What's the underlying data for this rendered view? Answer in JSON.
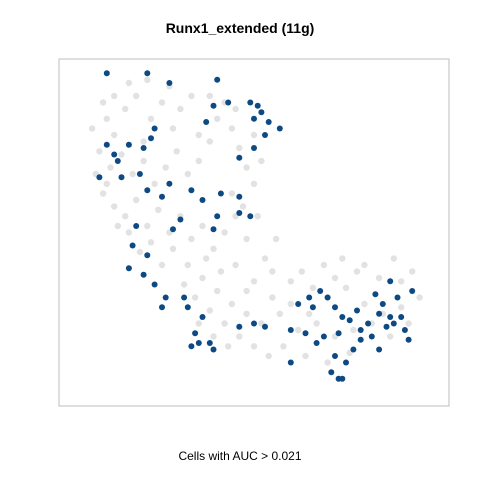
{
  "chart_data": {
    "type": "scatter",
    "title": "Runx1_extended (11g)",
    "xlabel": "Cells with AUC > 0.021",
    "ylabel": "",
    "axes_visible": false,
    "colors": {
      "highlight": "#0d4a84",
      "background": "#e2e2e2",
      "frame": "#bdbdbd"
    },
    "xlim": [
      0,
      100
    ],
    "ylim": [
      0,
      100
    ],
    "series": [
      {
        "role": "cells-below-threshold",
        "color": "#e2e2e2",
        "points": [
          [
            10,
            85
          ],
          [
            12,
            80
          ],
          [
            15,
            88
          ],
          [
            18,
            92
          ],
          [
            20,
            78
          ],
          [
            22,
            85
          ],
          [
            25,
            90
          ],
          [
            28,
            82
          ],
          [
            30,
            88
          ],
          [
            33,
            92
          ],
          [
            35,
            80
          ],
          [
            8,
            75
          ],
          [
            11,
            70
          ],
          [
            14,
            74
          ],
          [
            17,
            68
          ],
          [
            20,
            72
          ],
          [
            23,
            65
          ],
          [
            26,
            70
          ],
          [
            29,
            75
          ],
          [
            32,
            68
          ],
          [
            35,
            72
          ],
          [
            38,
            78
          ],
          [
            40,
            85
          ],
          [
            42,
            90
          ],
          [
            44,
            82
          ],
          [
            46,
            76
          ],
          [
            48,
            70
          ],
          [
            50,
            65
          ],
          [
            52,
            72
          ],
          [
            50,
            80
          ],
          [
            45,
            88
          ],
          [
            38,
            92
          ],
          [
            27,
            95
          ],
          [
            21,
            97
          ],
          [
            16,
            96
          ],
          [
            12,
            92
          ],
          [
            9,
            90
          ],
          [
            6,
            82
          ],
          [
            7,
            68
          ],
          [
            9,
            62
          ],
          [
            12,
            58
          ],
          [
            15,
            55
          ],
          [
            18,
            60
          ],
          [
            21,
            52
          ],
          [
            24,
            57
          ],
          [
            27,
            50
          ],
          [
            30,
            55
          ],
          [
            33,
            48
          ],
          [
            36,
            52
          ],
          [
            39,
            45
          ],
          [
            42,
            50
          ],
          [
            45,
            55
          ],
          [
            48,
            48
          ],
          [
            28,
            45
          ],
          [
            32,
            40
          ],
          [
            36,
            36
          ],
          [
            40,
            32
          ],
          [
            44,
            28
          ],
          [
            48,
            25
          ],
          [
            52,
            22
          ],
          [
            34,
            30
          ],
          [
            38,
            26
          ],
          [
            42,
            22
          ],
          [
            46,
            18
          ],
          [
            50,
            15
          ],
          [
            54,
            12
          ],
          [
            41,
            38
          ],
          [
            37,
            42
          ],
          [
            45,
            40
          ],
          [
            50,
            35
          ],
          [
            55,
            30
          ],
          [
            60,
            28
          ],
          [
            65,
            25
          ],
          [
            70,
            30
          ],
          [
            75,
            33
          ],
          [
            80,
            28
          ],
          [
            85,
            25
          ],
          [
            90,
            27
          ],
          [
            95,
            30
          ],
          [
            62,
            20
          ],
          [
            67,
            22
          ],
          [
            72,
            18
          ],
          [
            77,
            20
          ],
          [
            82,
            22
          ],
          [
            87,
            18
          ],
          [
            92,
            22
          ],
          [
            60,
            35
          ],
          [
            66,
            33
          ],
          [
            72,
            36
          ],
          [
            78,
            38
          ],
          [
            84,
            36
          ],
          [
            90,
            35
          ],
          [
            58,
            15
          ],
          [
            64,
            12
          ],
          [
            70,
            10
          ],
          [
            76,
            13
          ],
          [
            63,
            38
          ],
          [
            69,
            40
          ],
          [
            74,
            42
          ],
          [
            80,
            40
          ],
          [
            88,
            42
          ],
          [
            93,
            38
          ],
          [
            55,
            38
          ],
          [
            57,
            25
          ],
          [
            48,
            32
          ],
          [
            43,
            15
          ],
          [
            39,
            18
          ],
          [
            35,
            22
          ],
          [
            31,
            34
          ],
          [
            25,
            40
          ],
          [
            22,
            47
          ],
          [
            19,
            44
          ],
          [
            16,
            50
          ],
          [
            13,
            52
          ],
          [
            10,
            65
          ],
          [
            47,
            58
          ],
          [
            44,
            62
          ],
          [
            51,
            55
          ],
          [
            53,
            42
          ],
          [
            56,
            48
          ]
        ]
      },
      {
        "role": "cells-above-threshold",
        "color": "#0d4a84",
        "points": [
          [
            10,
            99
          ],
          [
            21,
            99
          ],
          [
            40,
            97
          ],
          [
            27,
            96
          ],
          [
            43,
            90
          ],
          [
            39,
            89
          ],
          [
            49,
            90
          ],
          [
            51,
            89
          ],
          [
            52,
            87
          ],
          [
            50,
            85
          ],
          [
            54,
            84
          ],
          [
            57,
            82
          ],
          [
            53,
            80
          ],
          [
            50,
            76
          ],
          [
            46,
            73
          ],
          [
            37,
            84
          ],
          [
            23,
            82
          ],
          [
            22,
            79
          ],
          [
            20,
            76
          ],
          [
            16,
            77
          ],
          [
            10,
            77
          ],
          [
            12,
            74
          ],
          [
            13,
            72
          ],
          [
            8,
            67
          ],
          [
            14,
            67
          ],
          [
            19,
            68
          ],
          [
            21,
            63
          ],
          [
            27,
            65
          ],
          [
            25,
            61
          ],
          [
            33,
            63
          ],
          [
            36,
            60
          ],
          [
            41,
            62
          ],
          [
            46,
            61
          ],
          [
            46,
            56
          ],
          [
            49,
            55
          ],
          [
            40,
            55
          ],
          [
            39,
            51
          ],
          [
            30,
            54
          ],
          [
            28,
            51
          ],
          [
            18,
            52
          ],
          [
            17,
            46
          ],
          [
            16,
            39
          ],
          [
            21,
            43
          ],
          [
            20,
            37
          ],
          [
            23,
            34
          ],
          [
            25,
            27
          ],
          [
            26,
            30
          ],
          [
            31,
            30
          ],
          [
            32,
            27
          ],
          [
            36,
            24
          ],
          [
            33,
            15
          ],
          [
            34,
            19
          ],
          [
            35,
            16
          ],
          [
            39,
            14
          ],
          [
            38,
            16
          ],
          [
            46,
            21
          ],
          [
            50,
            22
          ],
          [
            53,
            21
          ],
          [
            60,
            20
          ],
          [
            64,
            19
          ],
          [
            65,
            30
          ],
          [
            62,
            28
          ],
          [
            68,
            32
          ],
          [
            70,
            30
          ],
          [
            66,
            27
          ],
          [
            72,
            27
          ],
          [
            74,
            24
          ],
          [
            76,
            23
          ],
          [
            78,
            26
          ],
          [
            79,
            20
          ],
          [
            81,
            22
          ],
          [
            73,
            19
          ],
          [
            69,
            18
          ],
          [
            72,
            12
          ],
          [
            75,
            10
          ],
          [
            71,
            7
          ],
          [
            77,
            14
          ],
          [
            79,
            17
          ],
          [
            82,
            18
          ],
          [
            86,
            21
          ],
          [
            87,
            24
          ],
          [
            88,
            22
          ],
          [
            90,
            24
          ],
          [
            91,
            20
          ],
          [
            84,
            25
          ],
          [
            85,
            28
          ],
          [
            83,
            31
          ],
          [
            89,
            30
          ],
          [
            93,
            32
          ],
          [
            87,
            35
          ],
          [
            92,
            17
          ],
          [
            84,
            14
          ],
          [
            60,
            10
          ],
          [
            67,
            16
          ],
          [
            73,
            5
          ],
          [
            74,
            5
          ]
        ]
      }
    ]
  }
}
